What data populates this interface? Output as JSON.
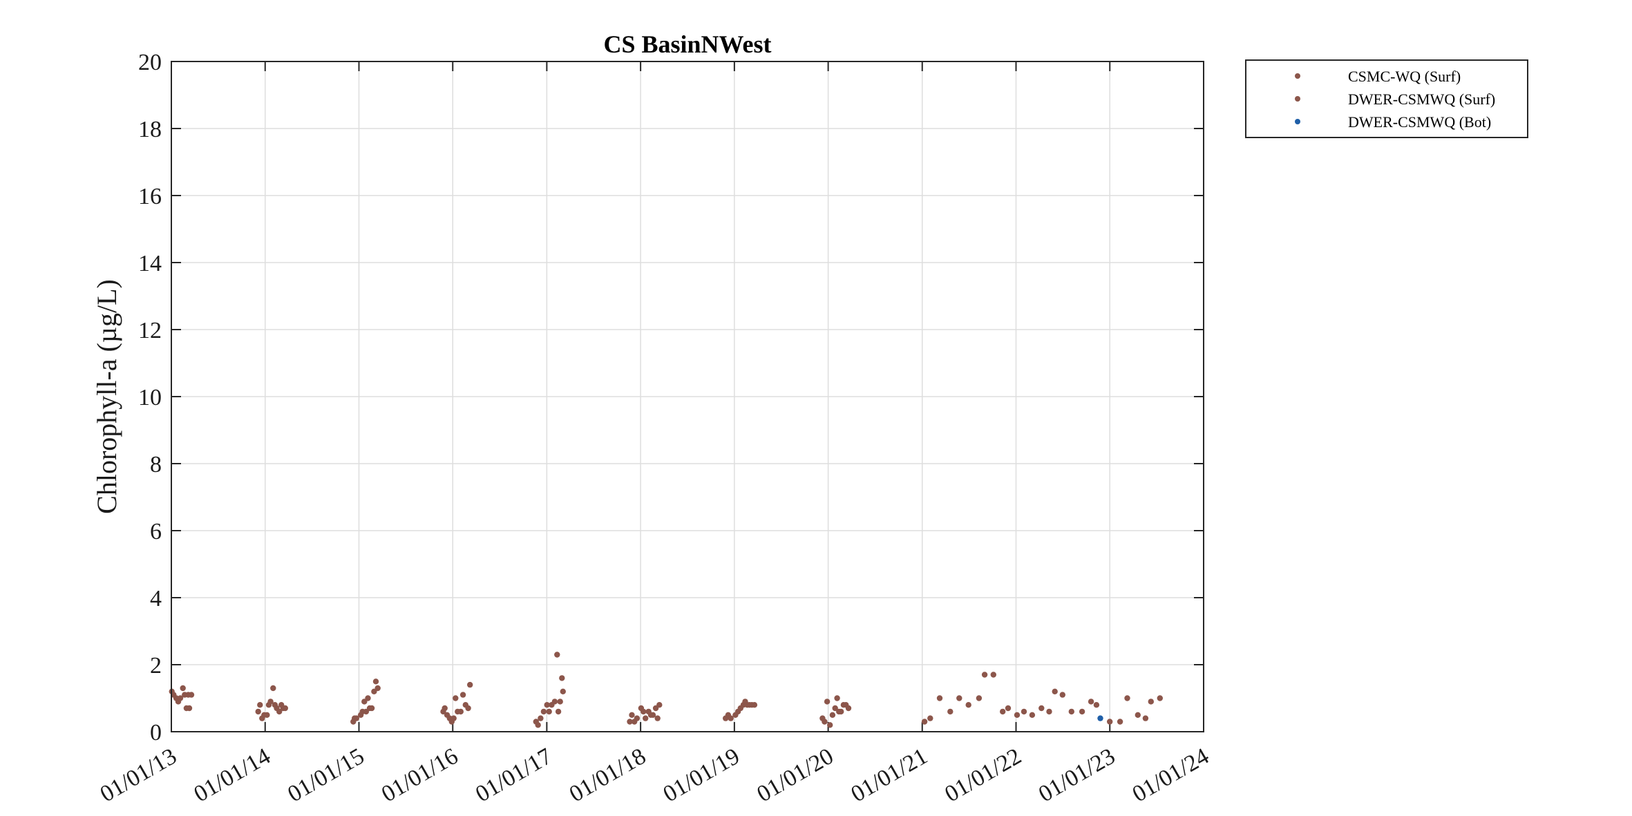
{
  "chart_data": {
    "type": "scatter",
    "title": "CS BasinNWest",
    "xlabel": "",
    "ylabel": "Chlorophyll-a (µg/L)",
    "xlim": [
      "2013-01-01",
      "2024-01-01"
    ],
    "ylim": [
      0,
      20
    ],
    "yticks": [
      0,
      2,
      4,
      6,
      8,
      10,
      12,
      14,
      16,
      18,
      20
    ],
    "xticks": [
      "2013-01-01",
      "2014-01-01",
      "2015-01-01",
      "2016-01-01",
      "2017-01-01",
      "2018-01-01",
      "2019-01-01",
      "2020-01-01",
      "2021-01-01",
      "2022-01-01",
      "2023-01-01",
      "2024-01-01"
    ],
    "xtick_labels": [
      "01/01/13",
      "01/01/14",
      "01/01/15",
      "01/01/16",
      "01/01/17",
      "01/01/18",
      "01/01/19",
      "01/01/20",
      "01/01/21",
      "01/01/22",
      "01/01/23",
      "01/01/24"
    ],
    "grid": true,
    "legend_position": "outside-top-right",
    "series": [
      {
        "name": "CSMC-WQ (Surf)",
        "color": "#8c564b",
        "points": [
          [
            "2013-01-03",
            1.2
          ],
          [
            "2013-01-10",
            1.1
          ],
          [
            "2013-01-20",
            1.0
          ],
          [
            "2013-01-28",
            0.9
          ],
          [
            "2013-02-05",
            1.0
          ],
          [
            "2013-02-15",
            1.3
          ],
          [
            "2013-02-22",
            1.1
          ],
          [
            "2013-03-01",
            0.7
          ],
          [
            "2013-03-08",
            1.1
          ],
          [
            "2013-03-12",
            0.7
          ],
          [
            "2013-03-20",
            1.1
          ],
          [
            "2013-12-05",
            0.6
          ],
          [
            "2013-12-12",
            0.8
          ],
          [
            "2013-12-20",
            0.4
          ],
          [
            "2013-12-28",
            0.5
          ],
          [
            "2014-01-08",
            0.5
          ],
          [
            "2014-01-15",
            0.8
          ],
          [
            "2014-01-22",
            0.9
          ],
          [
            "2014-02-01",
            1.3
          ],
          [
            "2014-02-08",
            0.8
          ],
          [
            "2014-02-15",
            0.7
          ],
          [
            "2014-02-25",
            0.6
          ],
          [
            "2014-03-05",
            0.8
          ],
          [
            "2014-03-12",
            0.7
          ],
          [
            "2014-03-20",
            0.7
          ],
          [
            "2014-12-10",
            0.3
          ],
          [
            "2014-12-15",
            0.4
          ],
          [
            "2014-12-22",
            0.4
          ],
          [
            "2015-01-08",
            0.5
          ],
          [
            "2015-01-15",
            0.6
          ],
          [
            "2015-01-22",
            0.9
          ],
          [
            "2015-01-29",
            0.6
          ],
          [
            "2015-02-05",
            1.0
          ],
          [
            "2015-02-12",
            0.7
          ],
          [
            "2015-02-20",
            0.7
          ],
          [
            "2015-03-01",
            1.2
          ],
          [
            "2015-03-08",
            1.5
          ],
          [
            "2015-03-15",
            1.3
          ],
          [
            "2015-11-25",
            0.6
          ],
          [
            "2015-12-01",
            0.7
          ],
          [
            "2015-12-10",
            0.5
          ],
          [
            "2015-12-20",
            0.4
          ],
          [
            "2015-12-28",
            0.3
          ],
          [
            "2016-01-05",
            0.4
          ],
          [
            "2016-01-12",
            1.0
          ],
          [
            "2016-01-20",
            0.6
          ],
          [
            "2016-02-01",
            0.6
          ],
          [
            "2016-02-10",
            1.1
          ],
          [
            "2016-02-20",
            0.8
          ],
          [
            "2016-03-01",
            0.7
          ],
          [
            "2016-03-08",
            1.4
          ],
          [
            "2016-11-20",
            0.3
          ],
          [
            "2016-11-28",
            0.2
          ],
          [
            "2016-12-08",
            0.4
          ],
          [
            "2016-12-20",
            0.6
          ],
          [
            "2017-01-02",
            0.8
          ],
          [
            "2017-01-10",
            0.6
          ],
          [
            "2017-01-20",
            0.8
          ],
          [
            "2017-02-01",
            0.9
          ],
          [
            "2017-02-10",
            2.3
          ],
          [
            "2017-02-15",
            0.6
          ],
          [
            "2017-02-22",
            0.9
          ],
          [
            "2017-03-01",
            1.6
          ],
          [
            "2017-03-05",
            1.2
          ],
          [
            "2017-11-20",
            0.3
          ],
          [
            "2017-11-28",
            0.5
          ],
          [
            "2017-12-08",
            0.3
          ],
          [
            "2017-12-18",
            0.4
          ],
          [
            "2018-01-03",
            0.7
          ],
          [
            "2018-01-12",
            0.6
          ],
          [
            "2018-01-20",
            0.4
          ],
          [
            "2018-02-01",
            0.6
          ],
          [
            "2018-02-10",
            0.5
          ],
          [
            "2018-02-18",
            0.5
          ],
          [
            "2018-03-01",
            0.7
          ],
          [
            "2018-03-08",
            0.4
          ],
          [
            "2018-03-15",
            0.8
          ],
          [
            "2018-11-28",
            0.4
          ],
          [
            "2018-12-08",
            0.5
          ],
          [
            "2018-12-18",
            0.4
          ],
          [
            "2019-01-05",
            0.5
          ],
          [
            "2019-01-15",
            0.6
          ],
          [
            "2019-01-25",
            0.7
          ],
          [
            "2019-02-05",
            0.8
          ],
          [
            "2019-02-12",
            0.9
          ],
          [
            "2019-02-20",
            0.8
          ],
          [
            "2019-03-01",
            0.8
          ],
          [
            "2019-03-10",
            0.8
          ],
          [
            "2019-03-20",
            0.8
          ],
          [
            "2019-12-10",
            0.4
          ],
          [
            "2019-12-18",
            0.3
          ],
          [
            "2019-12-28",
            0.9
          ],
          [
            "2020-01-08",
            0.2
          ],
          [
            "2020-01-18",
            0.5
          ],
          [
            "2020-01-28",
            0.7
          ],
          [
            "2020-02-05",
            1.0
          ],
          [
            "2020-02-12",
            0.6
          ],
          [
            "2020-02-20",
            0.6
          ],
          [
            "2020-03-01",
            0.8
          ],
          [
            "2020-03-10",
            0.8
          ],
          [
            "2020-03-20",
            0.7
          ]
        ]
      },
      {
        "name": "DWER-CSMWQ (Surf)",
        "color": "#8c564b",
        "points": [
          [
            "2021-01-10",
            0.3
          ],
          [
            "2021-02-01",
            0.4
          ],
          [
            "2021-03-10",
            1.0
          ],
          [
            "2021-04-20",
            0.6
          ],
          [
            "2021-05-25",
            1.0
          ],
          [
            "2021-06-30",
            0.8
          ],
          [
            "2021-08-10",
            1.0
          ],
          [
            "2021-09-01",
            1.7
          ],
          [
            "2021-10-05",
            1.7
          ],
          [
            "2021-11-10",
            0.6
          ],
          [
            "2021-12-01",
            0.7
          ],
          [
            "2022-01-05",
            0.5
          ],
          [
            "2022-02-01",
            0.6
          ],
          [
            "2022-03-05",
            0.5
          ],
          [
            "2022-04-10",
            0.7
          ],
          [
            "2022-05-10",
            0.6
          ],
          [
            "2022-06-01",
            1.2
          ],
          [
            "2022-07-01",
            1.1
          ],
          [
            "2022-08-05",
            0.6
          ],
          [
            "2022-09-15",
            0.6
          ],
          [
            "2022-10-20",
            0.9
          ],
          [
            "2022-11-10",
            0.8
          ],
          [
            "2023-01-01",
            0.3
          ],
          [
            "2023-02-10",
            0.3
          ],
          [
            "2023-03-10",
            1.0
          ],
          [
            "2023-04-20",
            0.5
          ],
          [
            "2023-05-20",
            0.4
          ],
          [
            "2023-06-10",
            0.9
          ],
          [
            "2023-07-15",
            1.0
          ]
        ]
      },
      {
        "name": "DWER-CSMWQ (Bot)",
        "color": "#1f5fa8",
        "points": [
          [
            "2022-11-25",
            0.4
          ]
        ]
      }
    ]
  }
}
